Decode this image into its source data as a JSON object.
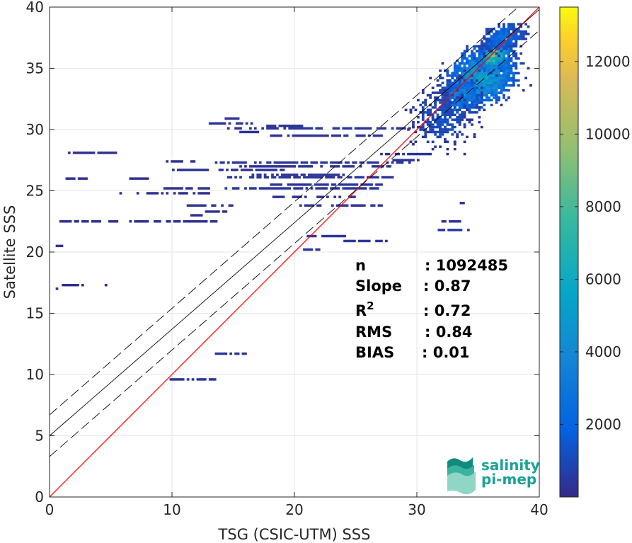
{
  "chart_data": {
    "type": "heatmap",
    "xlabel": "TSG (CSIC-UTM) SSS",
    "ylabel": "Satellite SSS",
    "xlim": [
      0,
      40
    ],
    "ylim": [
      0,
      40
    ],
    "x_ticks": [
      "0",
      "10",
      "20",
      "30",
      "40"
    ],
    "y_ticks": [
      "0",
      "5",
      "10",
      "15",
      "20",
      "25",
      "30",
      "35",
      "40"
    ],
    "grid": true,
    "colorbar": {
      "colormap": "parula",
      "range": [
        0,
        13500
      ],
      "ticks": [
        "2000",
        "4000",
        "6000",
        "8000",
        "10000",
        "12000"
      ],
      "tick_values": [
        2000,
        4000,
        6000,
        8000,
        10000,
        12000
      ]
    },
    "reference_lines": [
      {
        "kind": "identity",
        "color": "#ff0000",
        "intercept": 0,
        "slope": 1
      },
      {
        "kind": "regression",
        "color": "#000000",
        "intercept": 5.0,
        "slope": 0.87
      },
      {
        "kind": "regression_upper",
        "color": "#000000",
        "dash": true,
        "intercept": 6.7,
        "slope": 0.87
      },
      {
        "kind": "regression_lower",
        "color": "#000000",
        "dash": true,
        "intercept": 3.3,
        "slope": 0.87
      }
    ],
    "stats": [
      {
        "label": "n",
        "value": ": 1092485"
      },
      {
        "label": "Slope",
        "value": ": 0.87"
      },
      {
        "label": "R",
        "sup": "2",
        "value": ": 0.72"
      },
      {
        "label": "RMS",
        "value": ": 0.84"
      },
      {
        "label": "BIAS",
        "value": ": 0.01"
      }
    ],
    "segments": [
      [
        1.3,
        5.4,
        28.1,
        150
      ],
      [
        1.3,
        3.0,
        26.0,
        200
      ],
      [
        6.5,
        8.0,
        26.0,
        150
      ],
      [
        0.8,
        5.5,
        22.5,
        200
      ],
      [
        6.5,
        13.5,
        22.5,
        200
      ],
      [
        1.0,
        2.8,
        17.3,
        150
      ],
      [
        4.3,
        4.9,
        17.3,
        150
      ],
      [
        0.5,
        0.9,
        20.5,
        200
      ],
      [
        0.3,
        0.6,
        17.0,
        200
      ],
      [
        5.7,
        13.0,
        24.8,
        200
      ],
      [
        9.3,
        13.0,
        25.2,
        250
      ],
      [
        11.2,
        14.8,
        23.8,
        300
      ],
      [
        12.7,
        14.5,
        23.3,
        200
      ],
      [
        11.5,
        12.3,
        23.0,
        200
      ],
      [
        13.0,
        16.5,
        30.5,
        300
      ],
      [
        13.5,
        15.3,
        30.9,
        300
      ],
      [
        14.5,
        29.3,
        30.1,
        350
      ],
      [
        15.5,
        17.0,
        29.8,
        300
      ],
      [
        17.5,
        20.5,
        30.3,
        250
      ],
      [
        18.0,
        27.0,
        29.5,
        300
      ],
      [
        9.5,
        12.0,
        27.4,
        200
      ],
      [
        13.5,
        30.0,
        27.3,
        350
      ],
      [
        15.5,
        28.0,
        27.0,
        300
      ],
      [
        10.0,
        19.0,
        26.7,
        250
      ],
      [
        14.5,
        28.0,
        26.1,
        400
      ],
      [
        18.0,
        27.0,
        25.5,
        350
      ],
      [
        16.5,
        24.0,
        26.3,
        350
      ],
      [
        14.3,
        27.0,
        25.2,
        350
      ],
      [
        18.0,
        25.0,
        24.5,
        300
      ],
      [
        20.0,
        27.0,
        23.8,
        300
      ],
      [
        9.8,
        13.5,
        9.6,
        400
      ],
      [
        13.5,
        16.0,
        11.7,
        400
      ],
      [
        21.0,
        24.0,
        21.3,
        400
      ],
      [
        24.0,
        27.5,
        20.9,
        400
      ],
      [
        20.5,
        22.0,
        20.2,
        300
      ],
      [
        31.5,
        34.5,
        21.8,
        450
      ],
      [
        32.0,
        33.5,
        22.5,
        300
      ],
      [
        33.5,
        34.0,
        24.0,
        250
      ],
      [
        27.0,
        31.0,
        28.0,
        300
      ],
      [
        28.0,
        30.0,
        27.5,
        300
      ]
    ],
    "clusters": [
      {
        "cx": 35.2,
        "cy": 34.3,
        "sx": 1.7,
        "sy": 1.3,
        "rot": 0.55,
        "peak": 6000,
        "n": 1400
      },
      {
        "cx": 36.2,
        "cy": 36.0,
        "sx": 0.8,
        "sy": 0.6,
        "rot": 0.75,
        "peak": 9000,
        "n": 500
      },
      {
        "cx": 33.5,
        "cy": 32.7,
        "sx": 1.0,
        "sy": 0.8,
        "rot": 0.6,
        "peak": 4000,
        "n": 400
      },
      {
        "cx": 37.0,
        "cy": 37.5,
        "sx": 1.1,
        "sy": 0.6,
        "rot": 0.4,
        "peak": 3000,
        "n": 300
      },
      {
        "cx": 32.0,
        "cy": 31.0,
        "sx": 1.5,
        "sy": 1.5,
        "rot": 0.0,
        "peak": 1500,
        "n": 300
      }
    ]
  },
  "logo": {
    "line1": "salinity",
    "line2": "pi-mep"
  }
}
